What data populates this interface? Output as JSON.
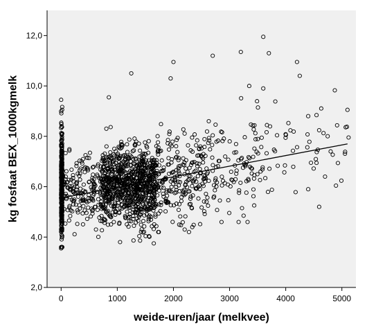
{
  "chart_data": {
    "type": "scatter",
    "xlabel": "weide-uren/jaar (melkvee)",
    "ylabel": "kg fosfaat BEX_1000kgmelk",
    "xlim": [
      -250,
      5250
    ],
    "ylim": [
      2.0,
      13.0
    ],
    "xticks": [
      0,
      1000,
      2000,
      3000,
      4000,
      5000
    ],
    "yticks": [
      2.0,
      4.0,
      6.0,
      8.0,
      10.0,
      12.0
    ],
    "xtick_labels": [
      "0",
      "1000",
      "2000",
      "3000",
      "4000",
      "5000"
    ],
    "ytick_labels": [
      "2,0",
      "4,0",
      "6,0",
      "8,0",
      "10,0",
      "12,0"
    ],
    "grid": false,
    "plot_background": "#f0f0f0",
    "marker_color": "#000000",
    "marker": "open-circle",
    "fit_line": {
      "x": [
        0,
        5100
      ],
      "y": [
        5.55,
        7.7
      ]
    },
    "clusters": [
      {
        "x_range": [
          0,
          20
        ],
        "y_mean": 6.0,
        "y_sd": 1.1,
        "y_range": [
          3.6,
          9.5
        ],
        "n": 330
      },
      {
        "x_range": [
          20,
          700
        ],
        "y_mean": 5.8,
        "y_sd": 0.7,
        "y_range": [
          3.8,
          8.0
        ],
        "n": 170
      },
      {
        "x_range": [
          700,
          1700
        ],
        "y_mean": 6.0,
        "y_sd": 0.75,
        "y_range": [
          3.6,
          9.6
        ],
        "n": 880
      },
      {
        "x_range": [
          1700,
          2600
        ],
        "y_mean": 6.4,
        "y_sd": 0.9,
        "y_range": [
          4.2,
          11.0
        ],
        "n": 230
      },
      {
        "x_range": [
          2600,
          3600
        ],
        "y_mean": 6.8,
        "y_sd": 1.0,
        "y_range": [
          4.6,
          11.9
        ],
        "n": 110
      },
      {
        "x_range": [
          3600,
          5150
        ],
        "y_mean": 7.2,
        "y_sd": 1.2,
        "y_range": [
          5.2,
          11.3
        ],
        "n": 50
      }
    ],
    "notable_points": [
      {
        "x": 3600,
        "y": 11.95
      },
      {
        "x": 3200,
        "y": 11.35
      },
      {
        "x": 3700,
        "y": 11.3
      },
      {
        "x": 2700,
        "y": 11.2
      },
      {
        "x": 4200,
        "y": 10.95
      },
      {
        "x": 2000,
        "y": 10.95
      },
      {
        "x": 4250,
        "y": 10.4
      },
      {
        "x": 1250,
        "y": 10.5
      },
      {
        "x": 1950,
        "y": 10.3
      },
      {
        "x": 3350,
        "y": 10.0
      },
      {
        "x": 3600,
        "y": 9.9
      },
      {
        "x": 850,
        "y": 9.55
      },
      {
        "x": 5100,
        "y": 9.05
      },
      {
        "x": 4800,
        "y": 7.4
      },
      {
        "x": 4700,
        "y": 6.4
      },
      {
        "x": 4400,
        "y": 5.9
      },
      {
        "x": 4450,
        "y": 6.95
      },
      {
        "x": 4400,
        "y": 8.8
      },
      {
        "x": 3250,
        "y": 4.85
      },
      {
        "x": 2200,
        "y": 4.3
      },
      {
        "x": 1650,
        "y": 3.75
      },
      {
        "x": 1050,
        "y": 3.8
      },
      {
        "x": 0,
        "y": 3.55
      },
      {
        "x": 0,
        "y": 9.45
      }
    ]
  }
}
